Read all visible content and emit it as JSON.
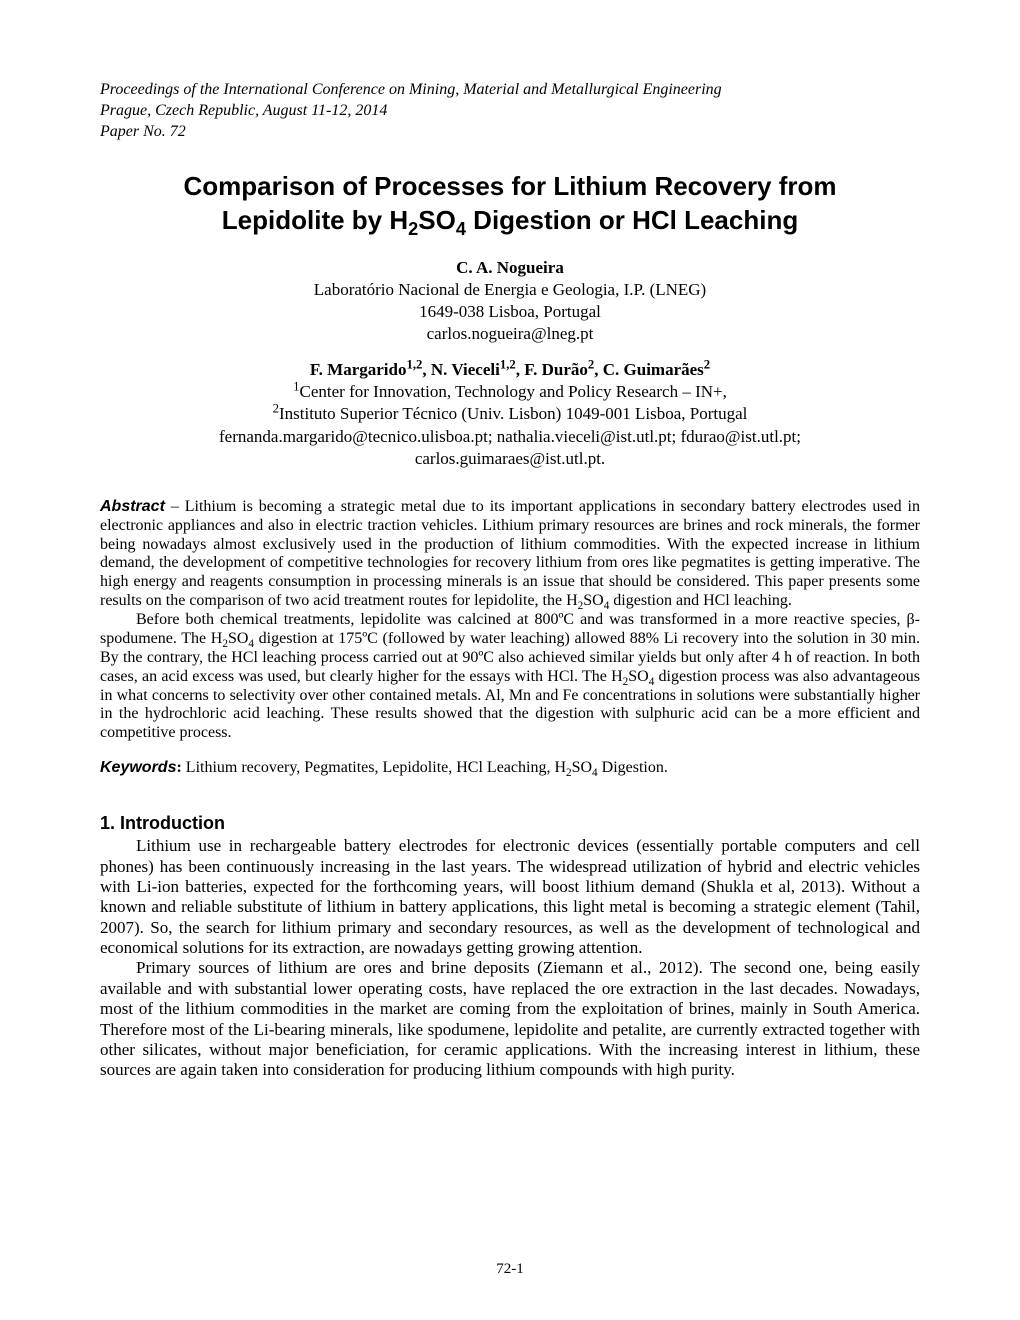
{
  "header": {
    "line1": "Proceedings of the International Conference on Mining, Material and Metallurgical Engineering",
    "line2": "Prague, Czech Republic, August 11-12, 2014",
    "line3": "Paper No. 72"
  },
  "title": {
    "line1_a": "Comparison of Processes for Lithium Recovery from",
    "line2_a": "Lepidolite by H",
    "line2_sub": "2",
    "line2_b": "SO",
    "line2_sub2": "4",
    "line2_c": " Digestion or HCl Leaching"
  },
  "author1": {
    "name": "C. A. Nogueira",
    "affil": "Laboratório Nacional de Energia e Geologia, I.P. (LNEG)",
    "addr": "1649-038 Lisboa, Portugal",
    "email": "carlos.nogueira@lneg.pt"
  },
  "authors2": {
    "line_a": "F. Margarido",
    "sup1": "1,2",
    "line_b": ", N. Vieceli",
    "sup2": "1,2",
    "line_c": ", F. Durão",
    "sup3": "2",
    "line_d": ", C. Guimarães",
    "sup4": "2",
    "aff1_sup": "1",
    "aff1": "Center for Innovation, Technology and Policy Research – IN+,",
    "aff2_sup": "2",
    "aff2": "Instituto Superior Técnico (Univ. Lisbon) 1049-001 Lisboa, Portugal",
    "emails1": "fernanda.margarido@tecnico.ulisboa.pt; nathalia.vieceli@ist.utl.pt; fdurao@ist.utl.pt;",
    "emails2": "carlos.guimaraes@ist.utl.pt."
  },
  "abstract": {
    "label": "Abstract",
    "dash": " – ",
    "p1_a": "Lithium is becoming a strategic metal due to its important applications in secondary battery electrodes used in electronic appliances and also in electric traction vehicles. Lithium primary resources are brines and rock minerals, the former being nowadays almost exclusively used in the production of lithium commodities. With the expected increase in lithium demand, the development of competitive technologies for recovery lithium from ores like pegmatites is getting imperative. The high energy and reagents consumption in processing minerals is an issue that should be considered. This paper presents some results on the comparison of two acid treatment routes for lepidolite, the H",
    "p1_sub1": "2",
    "p1_b": "SO",
    "p1_sub2": "4",
    "p1_c": " digestion and HCl leaching.",
    "p2_a": "Before both chemical treatments, lepidolite was calcined at 800ºC and was transformed in a more reactive species, β-spodumene. The H",
    "p2_sub1": "2",
    "p2_b": "SO",
    "p2_sub2": "4",
    "p2_c": " digestion at 175ºC (followed by water leaching) allowed 88% Li recovery into the solution in 30 min. By the contrary, the HCl leaching process carried out at 90ºC also achieved similar yields but only after 4 h of reaction. In both cases, an acid excess was used, but clearly higher for the essays with HCl. The H",
    "p2_sub3": "2",
    "p2_d": "SO",
    "p2_sub4": "4",
    "p2_e": " digestion process was also advantageous in what concerns to selectivity over other contained metals. Al, Mn and Fe concentrations in solutions were substantially higher in the hydrochloric acid leaching. These results showed that the digestion with sulphuric acid can be a more efficient and competitive process."
  },
  "keywords": {
    "label": "Keywords",
    "colon": ": ",
    "text_a": "Lithium recovery, Pegmatites, Lepidolite, HCl Leaching, H",
    "sub1": "2",
    "text_b": "SO",
    "sub2": "4",
    "text_c": " Digestion."
  },
  "section1": {
    "heading": "1. Introduction",
    "p1": "Lithium use in rechargeable battery electrodes for electronic devices (essentially portable computers and cell phones) has been continuously increasing in the last years. The widespread utilization of hybrid and electric vehicles with Li-ion batteries, expected for the forthcoming years, will boost lithium demand (Shukla et al, 2013). Without a known and reliable substitute of lithium in battery applications, this light metal is becoming a strategic element (Tahil, 2007). So, the search for lithium primary and secondary resources, as well as the development of technological and economical solutions for its extraction, are nowadays getting growing attention.",
    "p2": "Primary sources of lithium are ores and brine deposits (Ziemann et al., 2012). The second one, being easily available and with substantial lower operating costs, have replaced the ore extraction in the last decades. Nowadays, most of the lithium commodities in the market are coming from the exploitation of brines, mainly in South America. Therefore most of the Li-bearing minerals, like spodumene, lepidolite and petalite, are currently extracted together with other silicates, without major beneficiation, for ceramic applications. With the increasing interest in lithium, these sources are again taken into consideration for producing lithium compounds with high purity."
  },
  "footer": {
    "page_number": "72-1"
  }
}
